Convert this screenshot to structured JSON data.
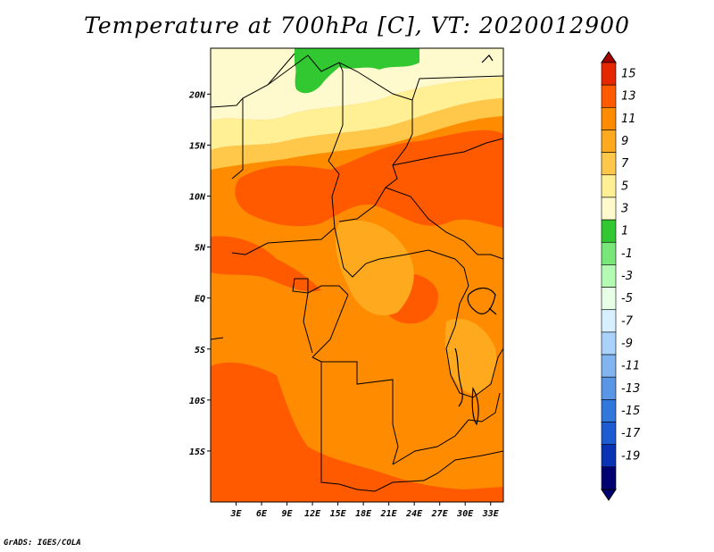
{
  "title": "Temperature at 700hPa [C], VT: 2020012900",
  "footer": "GrADS: IGES/COLA",
  "map": {
    "lon_range": [
      0,
      34.5
    ],
    "lat_range": [
      -20,
      24.5
    ],
    "lat_ticks": [
      {
        "value": 20,
        "label": "20N"
      },
      {
        "value": 15,
        "label": "15N"
      },
      {
        "value": 10,
        "label": "10N"
      },
      {
        "value": 5,
        "label": "5N"
      },
      {
        "value": 0,
        "label": "EQ"
      },
      {
        "value": -5,
        "label": "5S"
      },
      {
        "value": -10,
        "label": "10S"
      },
      {
        "value": -15,
        "label": "15S"
      }
    ],
    "lon_ticks": [
      {
        "value": 3,
        "label": "3E"
      },
      {
        "value": 6,
        "label": "6E"
      },
      {
        "value": 9,
        "label": "9E"
      },
      {
        "value": 12,
        "label": "12E"
      },
      {
        "value": 15,
        "label": "15E"
      },
      {
        "value": 18,
        "label": "18E"
      },
      {
        "value": 21,
        "label": "21E"
      },
      {
        "value": 24,
        "label": "24E"
      },
      {
        "value": 27,
        "label": "27E"
      },
      {
        "value": 30,
        "label": "30E"
      },
      {
        "value": 33,
        "label": "33E"
      }
    ]
  },
  "colorbar": {
    "levels": [
      "15",
      "13",
      "11",
      "9",
      "7",
      "5",
      "3",
      "1",
      "-1",
      "-3",
      "-5",
      "-7",
      "-9",
      "-11",
      "-13",
      "-15",
      "-17",
      "-19"
    ],
    "colors": [
      "#a50000",
      "#e62800",
      "#ff5a00",
      "#ff8c00",
      "#ffaa1e",
      "#ffc84b",
      "#fff096",
      "#fffacd",
      "#32c832",
      "#78e678",
      "#b4fab4",
      "#e6ffe6",
      "#d7f0ff",
      "#aad2fa",
      "#82b4f0",
      "#5a96e6",
      "#3278dc",
      "#1e5ad2",
      "#0a32b4",
      "#000070"
    ]
  },
  "field_colors": {
    "yellow_light": "#fffacd",
    "yellow": "#fff096",
    "yellow_orange": "#ffc84b",
    "light_orange": "#ffaa1e",
    "orange": "#ff8c00",
    "red_orange": "#ff5a00",
    "green": "#32c832"
  }
}
